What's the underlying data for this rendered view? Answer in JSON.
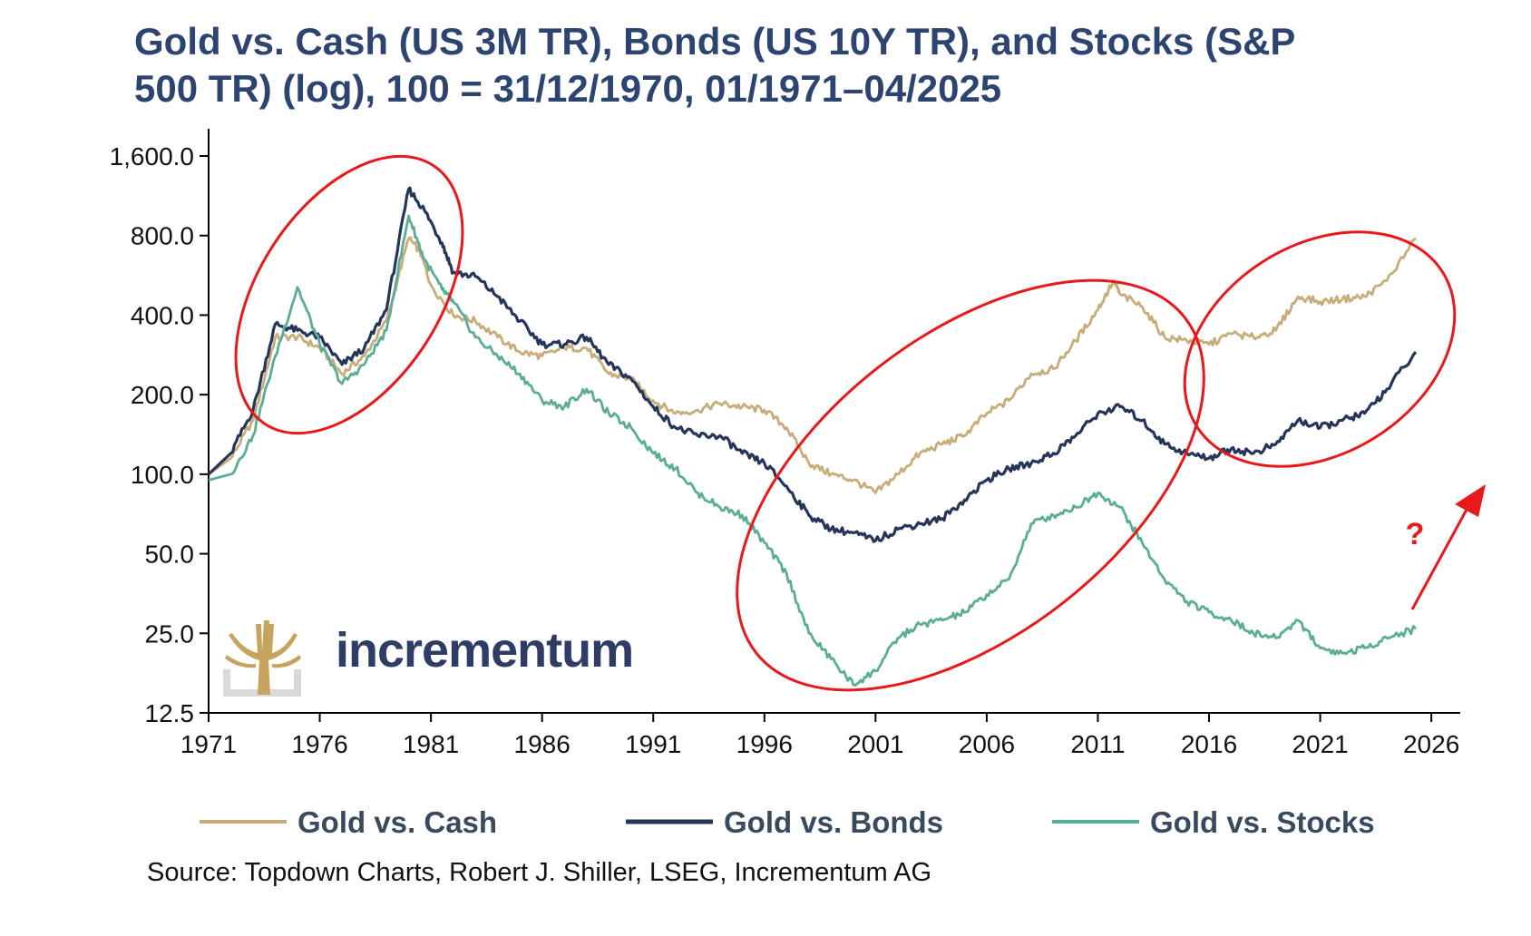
{
  "chart_data": {
    "type": "line",
    "title_line1": "Gold vs. Cash (US 3M TR), Bonds (US 10Y TR), and Stocks (S&P",
    "title_line2": "500 TR) (log), 100 = 31/12/1970, 01/1971–04/2025",
    "y_scale": "log2",
    "ylim": [
      12.5,
      1600
    ],
    "y_ticks": [
      {
        "value": 1600,
        "label": "1,600.0"
      },
      {
        "value": 800,
        "label": "800.0"
      },
      {
        "value": 400,
        "label": "400.0"
      },
      {
        "value": 200,
        "label": "200.0"
      },
      {
        "value": 100,
        "label": "100.0"
      },
      {
        "value": 50,
        "label": "50.0"
      },
      {
        "value": 25,
        "label": "25.0"
      },
      {
        "value": 12.5,
        "label": "12.5"
      }
    ],
    "xlim": [
      1971,
      2027.3
    ],
    "x_ticks": [
      1971,
      1976,
      1981,
      1986,
      1991,
      1996,
      2001,
      2006,
      2011,
      2016,
      2021,
      2026
    ],
    "series": [
      {
        "name": "Gold vs. Cash",
        "color": "#c6ad7a",
        "points": [
          [
            1971,
            100
          ],
          [
            1972,
            115
          ],
          [
            1973,
            160
          ],
          [
            1974,
            330
          ],
          [
            1975,
            330
          ],
          [
            1976,
            300
          ],
          [
            1977,
            240
          ],
          [
            1978,
            280
          ],
          [
            1979,
            380
          ],
          [
            1980,
            780
          ],
          [
            1980.5,
            700
          ],
          [
            1981,
            520
          ],
          [
            1982,
            400
          ],
          [
            1983,
            380
          ],
          [
            1984,
            330
          ],
          [
            1985,
            290
          ],
          [
            1986,
            280
          ],
          [
            1987,
            300
          ],
          [
            1988,
            300
          ],
          [
            1989,
            240
          ],
          [
            1990,
            230
          ],
          [
            1991,
            190
          ],
          [
            1992,
            170
          ],
          [
            1993,
            175
          ],
          [
            1994,
            185
          ],
          [
            1995,
            180
          ],
          [
            1996,
            175
          ],
          [
            1997,
            150
          ],
          [
            1998,
            110
          ],
          [
            1999,
            100
          ],
          [
            2000,
            95
          ],
          [
            2001,
            85
          ],
          [
            2002,
            100
          ],
          [
            2003,
            120
          ],
          [
            2004,
            130
          ],
          [
            2005,
            140
          ],
          [
            2006,
            170
          ],
          [
            2007,
            190
          ],
          [
            2008,
            240
          ],
          [
            2009,
            250
          ],
          [
            2010,
            320
          ],
          [
            2011,
            420
          ],
          [
            2011.7,
            540
          ],
          [
            2012,
            480
          ],
          [
            2013,
            430
          ],
          [
            2014,
            330
          ],
          [
            2015,
            320
          ],
          [
            2016,
            310
          ],
          [
            2017,
            340
          ],
          [
            2018,
            330
          ],
          [
            2019,
            350
          ],
          [
            2020,
            470
          ],
          [
            2021,
            450
          ],
          [
            2022,
            460
          ],
          [
            2023,
            470
          ],
          [
            2024,
            540
          ],
          [
            2025.3,
            780
          ]
        ]
      },
      {
        "name": "Gold vs. Bonds",
        "color": "#26365a",
        "points": [
          [
            1971,
            100
          ],
          [
            1972,
            120
          ],
          [
            1973,
            175
          ],
          [
            1974,
            370
          ],
          [
            1975,
            350
          ],
          [
            1976,
            330
          ],
          [
            1977,
            260
          ],
          [
            1978,
            300
          ],
          [
            1979,
            420
          ],
          [
            1980,
            1200
          ],
          [
            1980.7,
            1000
          ],
          [
            1981.5,
            750
          ],
          [
            1982,
            580
          ],
          [
            1983,
            560
          ],
          [
            1984,
            470
          ],
          [
            1985,
            380
          ],
          [
            1986,
            310
          ],
          [
            1987,
            310
          ],
          [
            1988,
            330
          ],
          [
            1989,
            260
          ],
          [
            1990,
            230
          ],
          [
            1991,
            180
          ],
          [
            1992,
            150
          ],
          [
            1993,
            140
          ],
          [
            1994,
            140
          ],
          [
            1995,
            120
          ],
          [
            1996,
            110
          ],
          [
            1997,
            90
          ],
          [
            1998,
            70
          ],
          [
            1999,
            62
          ],
          [
            2000,
            60
          ],
          [
            2001,
            56
          ],
          [
            2002,
            62
          ],
          [
            2003,
            65
          ],
          [
            2004,
            68
          ],
          [
            2005,
            80
          ],
          [
            2006,
            95
          ],
          [
            2007,
            105
          ],
          [
            2008,
            110
          ],
          [
            2009,
            120
          ],
          [
            2010,
            140
          ],
          [
            2011,
            170
          ],
          [
            2012,
            180
          ],
          [
            2013,
            160
          ],
          [
            2014,
            130
          ],
          [
            2015,
            120
          ],
          [
            2016,
            115
          ],
          [
            2017,
            125
          ],
          [
            2018,
            120
          ],
          [
            2019,
            130
          ],
          [
            2020,
            160
          ],
          [
            2021,
            150
          ],
          [
            2022,
            160
          ],
          [
            2023,
            170
          ],
          [
            2024,
            210
          ],
          [
            2025.3,
            290
          ]
        ]
      },
      {
        "name": "Gold vs. Stocks",
        "color": "#5cad95",
        "points": [
          [
            1971,
            95
          ],
          [
            1972,
            100
          ],
          [
            1973,
            140
          ],
          [
            1974,
            280
          ],
          [
            1975,
            510
          ],
          [
            1976,
            310
          ],
          [
            1977,
            220
          ],
          [
            1978,
            260
          ],
          [
            1979,
            350
          ],
          [
            1980,
            950
          ],
          [
            1980.7,
            650
          ],
          [
            1981.5,
            500
          ],
          [
            1982,
            450
          ],
          [
            1983,
            330
          ],
          [
            1984,
            280
          ],
          [
            1985,
            240
          ],
          [
            1986,
            190
          ],
          [
            1987,
            180
          ],
          [
            1988,
            210
          ],
          [
            1989,
            170
          ],
          [
            1990,
            150
          ],
          [
            1991,
            120
          ],
          [
            1992,
            105
          ],
          [
            1993,
            85
          ],
          [
            1994,
            75
          ],
          [
            1995,
            70
          ],
          [
            1996,
            55
          ],
          [
            1997,
            42
          ],
          [
            1998,
            25
          ],
          [
            1999,
            20
          ],
          [
            2000,
            16
          ],
          [
            2001,
            18
          ],
          [
            2002,
            24
          ],
          [
            2003,
            27
          ],
          [
            2004,
            28
          ],
          [
            2005,
            30
          ],
          [
            2006,
            35
          ],
          [
            2007,
            40
          ],
          [
            2008,
            65
          ],
          [
            2009,
            70
          ],
          [
            2010,
            75
          ],
          [
            2011,
            85
          ],
          [
            2012,
            75
          ],
          [
            2013,
            55
          ],
          [
            2014,
            40
          ],
          [
            2015,
            33
          ],
          [
            2016,
            30
          ],
          [
            2017,
            28
          ],
          [
            2018,
            25
          ],
          [
            2019,
            24
          ],
          [
            2020,
            28
          ],
          [
            2021,
            22
          ],
          [
            2022,
            21
          ],
          [
            2023,
            22
          ],
          [
            2024,
            24
          ],
          [
            2025.3,
            26
          ]
        ]
      }
    ],
    "annotations": [
      {
        "type": "ellipse",
        "around": "1973–1981 peak"
      },
      {
        "type": "ellipse",
        "around": "1997–2014"
      },
      {
        "type": "ellipse",
        "around": "2016–2025 rise"
      },
      {
        "type": "arrow",
        "direction": "up-right",
        "label": "?"
      }
    ],
    "annotation_color": "#e8191b",
    "legend_position": "bottom"
  },
  "logo": {
    "word": "incrementum"
  },
  "source": "Source: Topdown Charts, Robert J. Shiller, LSEG, Incrementum AG"
}
